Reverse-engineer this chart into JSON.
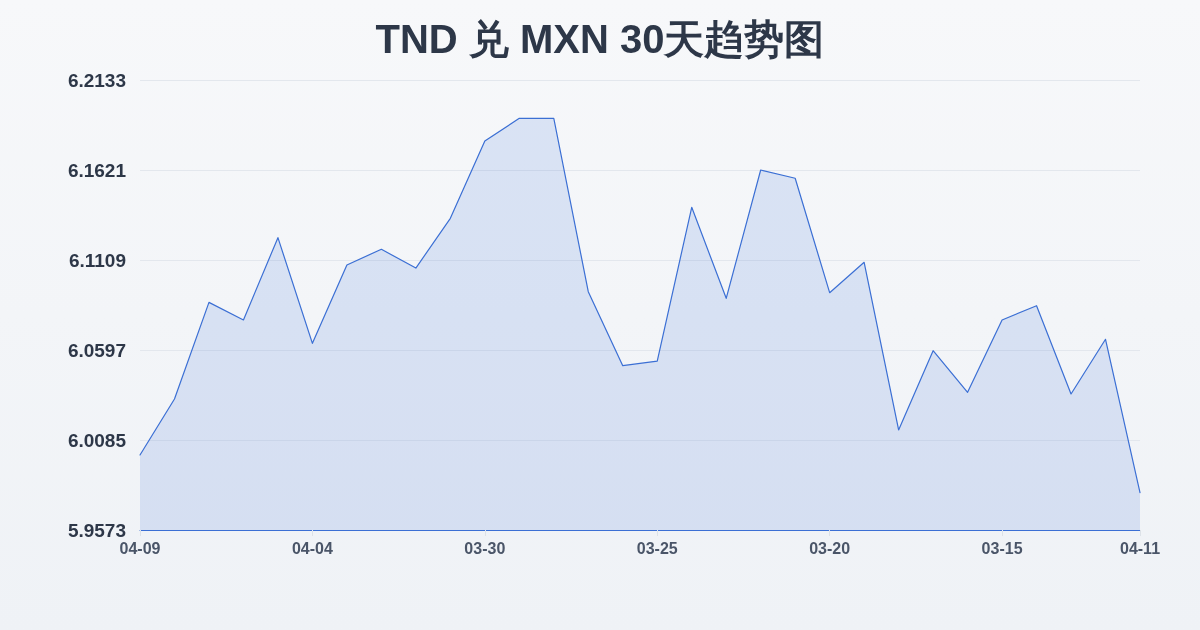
{
  "chart_data": {
    "type": "area",
    "title": "TND 兑 MXN 30天趋势图",
    "categories": [
      "04-09",
      null,
      null,
      null,
      null,
      "04-04",
      null,
      null,
      null,
      null,
      "03-30",
      null,
      null,
      null,
      null,
      "03-25",
      null,
      null,
      null,
      null,
      "03-20",
      null,
      null,
      null,
      null,
      "03-15",
      null,
      null,
      null,
      "04-11"
    ],
    "values": [
      6.0,
      6.0318,
      6.0868,
      6.0768,
      6.1236,
      6.0635,
      6.1081,
      6.117,
      6.1063,
      6.1346,
      6.1786,
      6.1915,
      6.1915,
      6.0929,
      6.0508,
      6.0534,
      6.1409,
      6.0891,
      6.1621,
      6.1574,
      6.0923,
      6.1096,
      6.0142,
      6.0593,
      6.0356,
      6.0768,
      6.0849,
      6.0347,
      6.0658,
      5.9785
    ],
    "color": "#3b6fd4",
    "ylim": [
      5.9573,
      6.2133
    ],
    "yticks": [
      5.9573,
      6.0085,
      6.0597,
      6.1109,
      6.1621,
      6.2133
    ],
    "grid": "y"
  }
}
